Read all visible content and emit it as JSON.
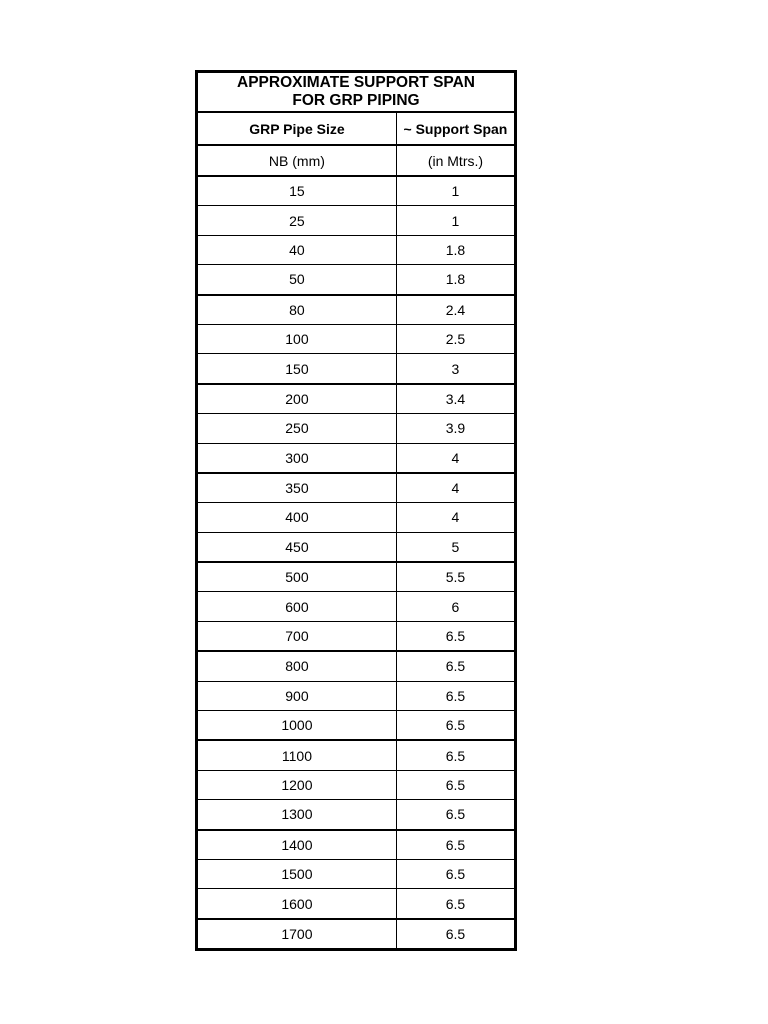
{
  "page": {
    "background_color": "#ffffff",
    "text_color": "#000000",
    "border_color": "#000000"
  },
  "table": {
    "title_line1": "APPROXIMATE SUPPORT SPAN",
    "title_line2": "FOR GRP PIPING",
    "columns": [
      {
        "header": "GRP Pipe Size",
        "subheader": "NB (mm)"
      },
      {
        "header": "~ Support Span",
        "subheader": "(in Mtrs.)"
      }
    ],
    "rows": [
      {
        "size": "15",
        "span": "1"
      },
      {
        "size": "25",
        "span": "1"
      },
      {
        "size": "40",
        "span": "1.8"
      },
      {
        "size": "50",
        "span": "1.8"
      },
      {
        "size": "80",
        "span": "2.4"
      },
      {
        "size": "100",
        "span": "2.5"
      },
      {
        "size": "150",
        "span": "3"
      },
      {
        "size": "200",
        "span": "3.4"
      },
      {
        "size": "250",
        "span": "3.9"
      },
      {
        "size": "300",
        "span": "4"
      },
      {
        "size": "350",
        "span": "4"
      },
      {
        "size": "400",
        "span": "4"
      },
      {
        "size": "450",
        "span": "5"
      },
      {
        "size": "500",
        "span": "5.5"
      },
      {
        "size": "600",
        "span": "6"
      },
      {
        "size": "700",
        "span": "6.5"
      },
      {
        "size": "800",
        "span": "6.5"
      },
      {
        "size": "900",
        "span": "6.5"
      },
      {
        "size": "1000",
        "span": "6.5"
      },
      {
        "size": "1100",
        "span": "6.5"
      },
      {
        "size": "1200",
        "span": "6.5"
      },
      {
        "size": "1300",
        "span": "6.5"
      },
      {
        "size": "1400",
        "span": "6.5"
      },
      {
        "size": "1500",
        "span": "6.5"
      },
      {
        "size": "1600",
        "span": "6.5"
      },
      {
        "size": "1700",
        "span": "6.5"
      }
    ],
    "thick_border_after_rows": [
      4,
      7,
      10,
      13,
      16,
      19,
      22,
      25
    ]
  }
}
